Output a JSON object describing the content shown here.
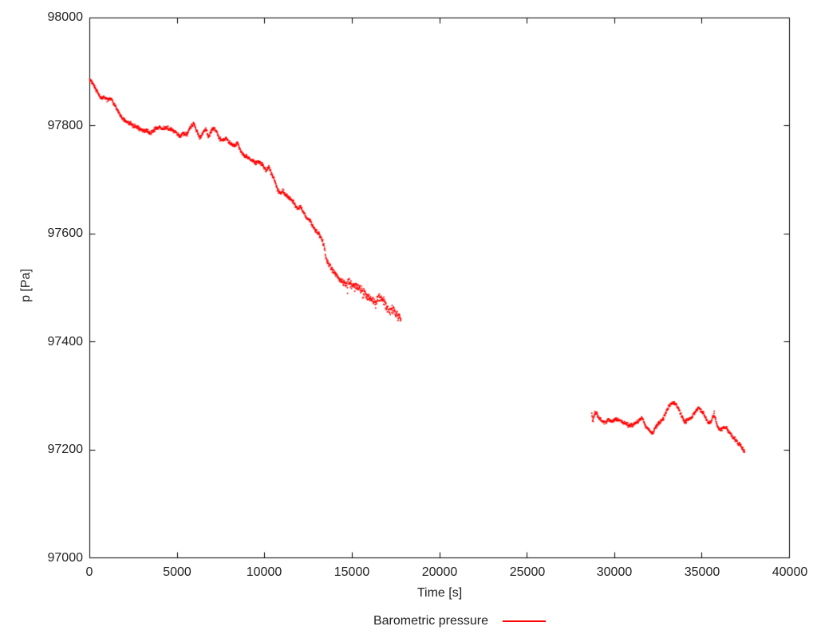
{
  "chart_data": {
    "type": "scatter",
    "title": "",
    "xlabel": "Time [s]",
    "ylabel": "p [Pa]",
    "xlim": [
      0,
      40000
    ],
    "ylim": [
      97000,
      98000
    ],
    "x_tick_step": 5000,
    "y_tick_step": 200,
    "x_tick_labels": [
      "0",
      "5000",
      "10000",
      "15000",
      "20000",
      "25000",
      "30000",
      "35000",
      "40000"
    ],
    "y_tick_labels": [
      "98000",
      "97800",
      "97600",
      "97400",
      "97200",
      "97000"
    ],
    "grid": false,
    "legend_position": "below-center",
    "point_color": "#ff0000",
    "axis_color": "#000000",
    "background": "#ffffff",
    "noise_bands": [
      {
        "t_start": 0,
        "t_end": 13000,
        "amp": 3.5
      },
      {
        "t_start": 13000,
        "t_end": 14500,
        "amp": 5
      },
      {
        "t_start": 14500,
        "t_end": 17900,
        "amp": 8
      },
      {
        "t_start": 28000,
        "t_end": 38000,
        "amp": 3.5
      }
    ],
    "outliers": {
      "t_start": 14600,
      "t_end": 17900,
      "chance": 0.025,
      "max_drop": 22
    },
    "series": [
      {
        "name": "Barometric pressure",
        "segments": [
          [
            [
              0,
              97888
            ],
            [
              250,
              97874
            ],
            [
              450,
              97862
            ],
            [
              600,
              97852
            ],
            [
              800,
              97853
            ],
            [
              1000,
              97849
            ],
            [
              1200,
              97851
            ],
            [
              1400,
              97840
            ],
            [
              1600,
              97828
            ],
            [
              1800,
              97817
            ],
            [
              2000,
              97810
            ],
            [
              2250,
              97805
            ],
            [
              2500,
              97800
            ],
            [
              2750,
              97796
            ],
            [
              3000,
              97793
            ],
            [
              3300,
              97789
            ],
            [
              3550,
              97788
            ],
            [
              3750,
              97795
            ],
            [
              3950,
              97798
            ],
            [
              4150,
              97794
            ],
            [
              4350,
              97797
            ],
            [
              4550,
              97794
            ],
            [
              4750,
              97792
            ],
            [
              4950,
              97787
            ],
            [
              5150,
              97781
            ],
            [
              5350,
              97786
            ],
            [
              5550,
              97783
            ],
            [
              5750,
              97797
            ],
            [
              5950,
              97804
            ],
            [
              6100,
              97792
            ],
            [
              6300,
              97776
            ],
            [
              6500,
              97789
            ],
            [
              6650,
              97794
            ],
            [
              6800,
              97778
            ],
            [
              6950,
              97791
            ],
            [
              7100,
              97796
            ],
            [
              7250,
              97789
            ],
            [
              7400,
              97777
            ],
            [
              7600,
              97772
            ],
            [
              7800,
              97777
            ],
            [
              8000,
              97768
            ],
            [
              8250,
              97763
            ],
            [
              8450,
              97769
            ],
            [
              8650,
              97752
            ],
            [
              8850,
              97745
            ],
            [
              9050,
              97743
            ],
            [
              9250,
              97736
            ],
            [
              9450,
              97732
            ],
            [
              9650,
              97735
            ],
            [
              9850,
              97729
            ],
            [
              10070,
              97717
            ],
            [
              10250,
              97724
            ],
            [
              10400,
              97710
            ],
            [
              10550,
              97700
            ],
            [
              10750,
              97681
            ],
            [
              10900,
              97676
            ],
            [
              11050,
              97679
            ],
            [
              11250,
              97671
            ],
            [
              11450,
              97665
            ],
            [
              11650,
              97659
            ],
            [
              11850,
              97648
            ],
            [
              12050,
              97650
            ],
            [
              12250,
              97639
            ],
            [
              12400,
              97629
            ],
            [
              12600,
              97625
            ],
            [
              12800,
              97611
            ],
            [
              13000,
              97604
            ],
            [
              13200,
              97593
            ],
            [
              13350,
              97585
            ],
            [
              13430,
              97573
            ],
            [
              13480,
              97556
            ],
            [
              13650,
              97544
            ],
            [
              13850,
              97534
            ],
            [
              14050,
              97526
            ],
            [
              14250,
              97517
            ],
            [
              14450,
              97511
            ],
            [
              14600,
              97507
            ],
            [
              14800,
              97512
            ],
            [
              14950,
              97506
            ],
            [
              15150,
              97501
            ],
            [
              15300,
              97505
            ],
            [
              15500,
              97496
            ],
            [
              15700,
              97490
            ],
            [
              15900,
              97485
            ],
            [
              16100,
              97477
            ],
            [
              16300,
              97471
            ],
            [
              16450,
              97480
            ],
            [
              16600,
              97484
            ],
            [
              16750,
              97477
            ],
            [
              16950,
              97466
            ],
            [
              17150,
              97457
            ],
            [
              17300,
              97461
            ],
            [
              17500,
              97452
            ],
            [
              17650,
              97447
            ],
            [
              17800,
              97441
            ]
          ],
          [
            [
              28700,
              97267
            ],
            [
              28760,
              97253
            ],
            [
              28860,
              97266
            ],
            [
              28950,
              97271
            ],
            [
              29100,
              97259
            ],
            [
              29250,
              97253
            ],
            [
              29450,
              97250
            ],
            [
              29650,
              97256
            ],
            [
              29850,
              97253
            ],
            [
              30050,
              97256
            ],
            [
              30250,
              97255
            ],
            [
              30450,
              97252
            ],
            [
              30650,
              97249
            ],
            [
              30850,
              97244
            ],
            [
              31050,
              97246
            ],
            [
              31250,
              97250
            ],
            [
              31450,
              97257
            ],
            [
              31600,
              97259
            ],
            [
              31750,
              97244
            ],
            [
              31900,
              97240
            ],
            [
              32050,
              97234
            ],
            [
              32200,
              97232
            ],
            [
              32350,
              97242
            ],
            [
              32500,
              97248
            ],
            [
              32650,
              97252
            ],
            [
              32800,
              97259
            ],
            [
              32950,
              97270
            ],
            [
              33100,
              97281
            ],
            [
              33250,
              97286
            ],
            [
              33400,
              97287
            ],
            [
              33550,
              97283
            ],
            [
              33700,
              97273
            ],
            [
              33850,
              97262
            ],
            [
              34000,
              97252
            ],
            [
              34150,
              97255
            ],
            [
              34350,
              97259
            ],
            [
              34500,
              97265
            ],
            [
              34650,
              97272
            ],
            [
              34800,
              97280
            ],
            [
              34950,
              97272
            ],
            [
              35150,
              97264
            ],
            [
              35300,
              97253
            ],
            [
              35450,
              97249
            ],
            [
              35600,
              97259
            ],
            [
              35700,
              97268
            ],
            [
              35800,
              97253
            ],
            [
              35900,
              97243
            ],
            [
              36050,
              97236
            ],
            [
              36200,
              97240
            ],
            [
              36400,
              97241
            ],
            [
              36550,
              97233
            ],
            [
              36700,
              97226
            ],
            [
              36850,
              97220
            ],
            [
              37000,
              97215
            ],
            [
              37150,
              97210
            ],
            [
              37300,
              97203
            ],
            [
              37450,
              97196
            ]
          ]
        ]
      }
    ]
  }
}
